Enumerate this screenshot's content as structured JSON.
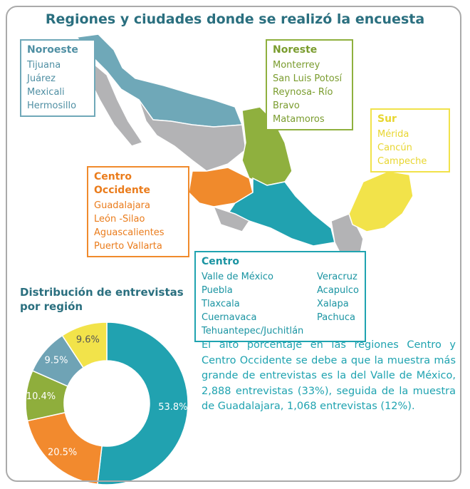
{
  "title": "Regiones y ciudades donde se realizó la encuesta",
  "regions": [
    {
      "name": "Noroeste",
      "cities": [
        "Tijuana",
        "Juárez",
        "Mexicali",
        "Hermosillo"
      ]
    },
    {
      "name": "Noreste",
      "cities": [
        "Monterrey",
        "San Luis Potosí",
        "Reynosa- Río",
        "Bravo",
        "Matamoros"
      ]
    },
    {
      "name": "Sur",
      "cities": [
        "Mérida",
        "Cancún",
        "Campeche"
      ]
    },
    {
      "name": "Centro Occidente",
      "cities": [
        "Guadalajara",
        "León -Silao",
        "Aguascalientes",
        "Puerto Vallarta"
      ]
    },
    {
      "name": "Centro",
      "cities": [
        "Valle de México",
        "Puebla",
        "Tlaxcala",
        "Cuernavaca",
        "Tehuantepec/Juchitlán"
      ],
      "cities_col2": [
        "Veracruz",
        "Acapulco",
        "Xalapa",
        "Pachuca"
      ]
    }
  ],
  "chart_data": {
    "type": "donut",
    "title": "Distribución de entrevistas por región",
    "values": [
      53.8,
      20.5,
      10.4,
      9.5,
      9.6
    ],
    "value_labels": [
      "53.8%",
      "20.5%",
      "10.4%",
      "9.5%",
      "9.6%"
    ],
    "colors": [
      "#21a2b0",
      "#f28a2e",
      "#8fae3c",
      "#6fa3b5",
      "#f2e34a"
    ],
    "label_colors": [
      "#ffffff",
      "#ffffff",
      "#ffffff",
      "#ffffff",
      "#555555"
    ]
  },
  "paragraph": "El alto porcentaje en las regiones Centro y Centro Occidente se debe a que la muestra más grande de entrevistas es la del Valle de México, 2,888 entrevistas (33%), seguida de la muestra de Guadalajara, 1,068 entrevistas (12%)."
}
